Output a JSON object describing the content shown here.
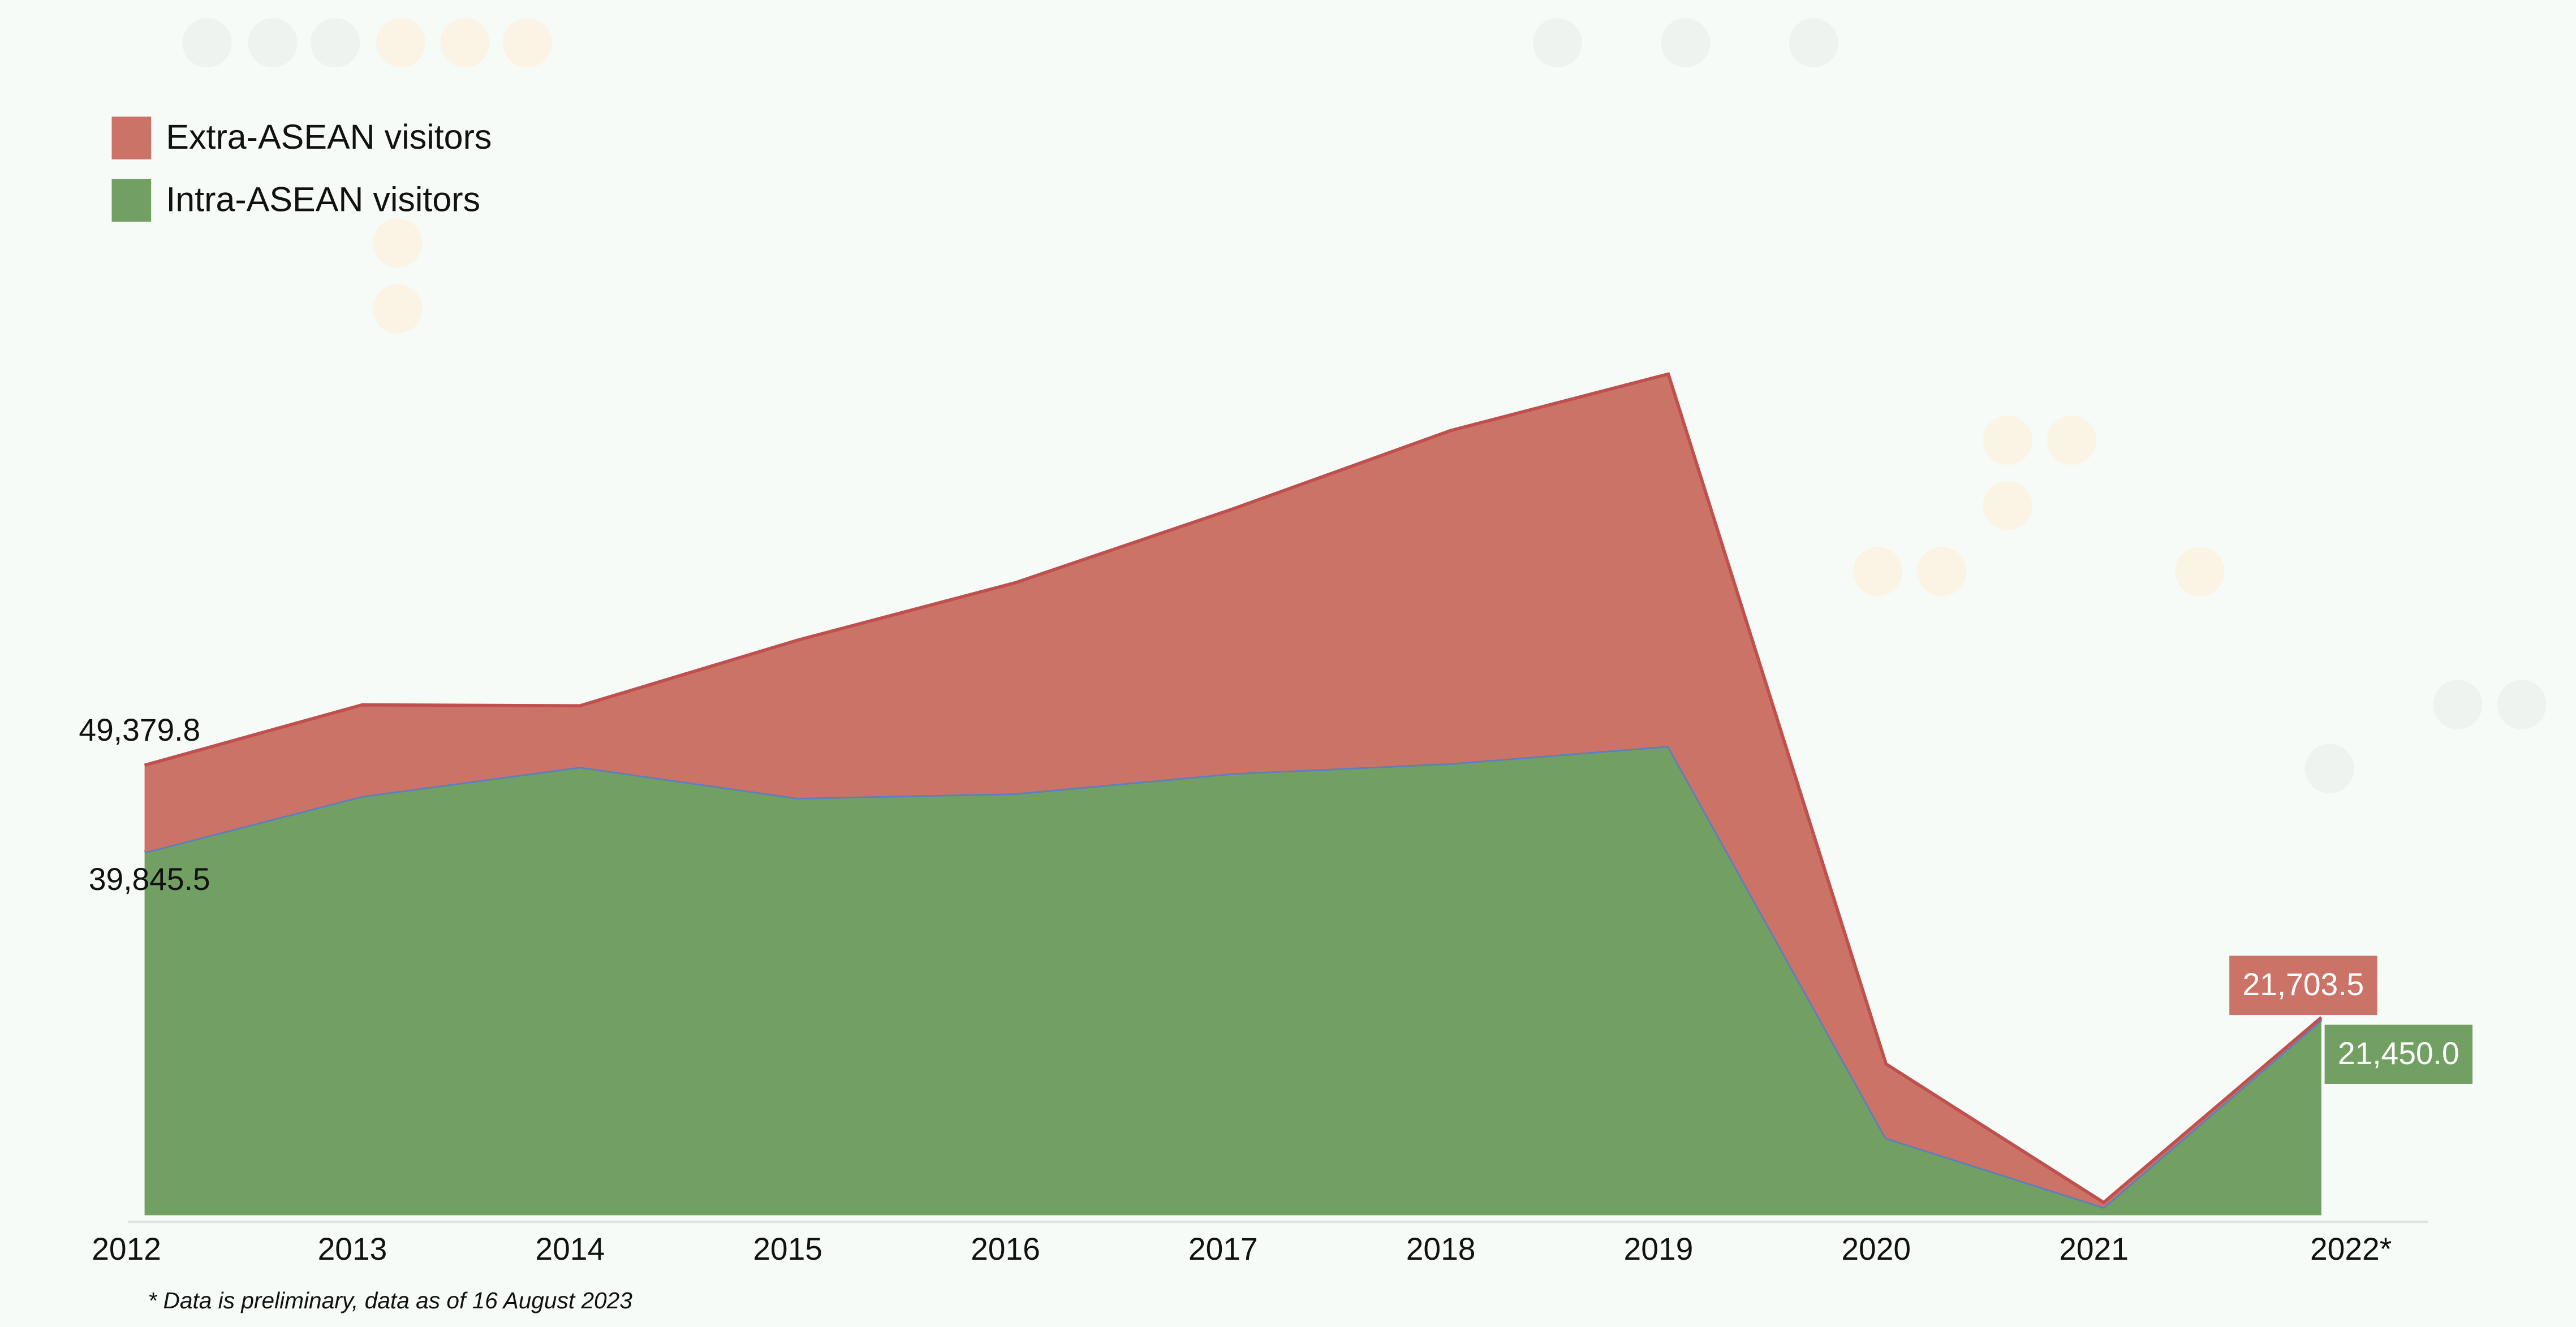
{
  "chart_data": {
    "type": "stacked_area",
    "categories": [
      "2012",
      "2013",
      "2014",
      "2015",
      "2016",
      "2017",
      "2018",
      "2019",
      "2020",
      "2021",
      "2022*"
    ],
    "series": [
      {
        "name": "Intra-ASEAN visitors",
        "color": "#72a062",
        "line_color": "#5b7fc0",
        "values": [
          39845.5,
          46000,
          49200,
          45800,
          46300,
          48500,
          49600,
          51500,
          8500,
          900,
          21450.0
        ],
        "value_labels": [
          "39,845.5",
          null,
          null,
          null,
          null,
          null,
          null,
          null,
          null,
          null,
          "21,450.0"
        ]
      },
      {
        "name": "Extra-ASEAN visitors",
        "color": "#cc7367",
        "line_color": "#c0504d",
        "values": [
          9534.3,
          10000,
          6700,
          17300,
          23100,
          29000,
          36500,
          40800,
          8100,
          500,
          253.5
        ]
      }
    ],
    "annotations": [
      "49,379.8",
      "21,703.5"
    ],
    "footnote": "* Data is preliminary, data as of 16 August 2023",
    "ylim": [
      0,
      100000
    ],
    "legend": "top-left"
  }
}
